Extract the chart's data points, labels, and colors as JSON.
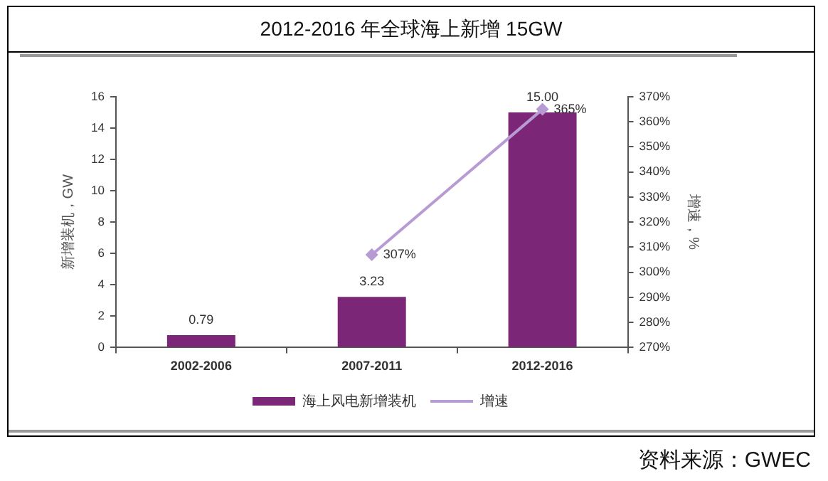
{
  "chart_data": {
    "type": "bar",
    "title": "2012-2016 年全球海上新增 15GW",
    "ylabel": "新增装机，GW",
    "y2label": "增速，%",
    "categories": [
      "2002-2006",
      "2007-2011",
      "2012-2016"
    ],
    "series": [
      {
        "name": "海上风电新增装机",
        "color": "#7b2677",
        "values": [
          0.79,
          3.23,
          15
        ],
        "value_labels": [
          "0.79",
          "3.23",
          "15.00"
        ]
      },
      {
        "name": "增速",
        "type": "line",
        "axis": "y2",
        "color": "#b99bd3",
        "marker": "diamond",
        "values": [
          null,
          307,
          365
        ],
        "value_labels": [
          null,
          "307%",
          "365%"
        ]
      }
    ],
    "ylim": [
      0,
      16
    ],
    "yticks": [
      0,
      2,
      4,
      6,
      8,
      10,
      12,
      14,
      16
    ],
    "y2lim": [
      270,
      370
    ],
    "y2ticks": [
      {
        "value": 270,
        "label": "270%"
      },
      {
        "value": 280,
        "label": "280%"
      },
      {
        "value": 290,
        "label": "290%"
      },
      {
        "value": 300,
        "label": "300%"
      },
      {
        "value": 310,
        "label": "310%"
      },
      {
        "value": 320,
        "label": "320%"
      },
      {
        "value": 330,
        "label": "330%"
      },
      {
        "value": 340,
        "label": "340%"
      },
      {
        "value": 350,
        "label": "350%"
      },
      {
        "value": 360,
        "label": "360%"
      },
      {
        "value": 370,
        "label": "370%"
      }
    ],
    "grid": false,
    "legend": "bottom",
    "annotations": [
      "资料来源：GWEC"
    ]
  }
}
